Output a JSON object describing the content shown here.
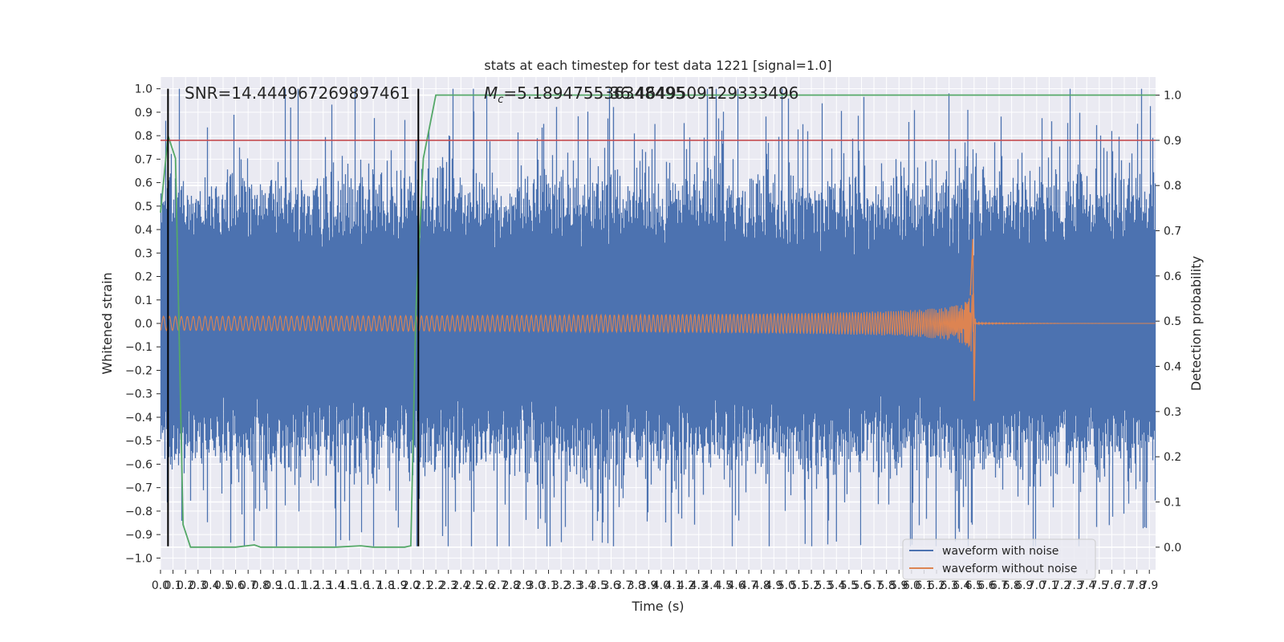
{
  "chart_data": {
    "type": "line",
    "title": "stats at each timestep for test data 1221 [signal=1.0]",
    "xlabel": "Time (s)",
    "ylabel": "Whitened strain",
    "y2label": "Detection probability",
    "xlim": [
      0.0,
      7.95
    ],
    "ylim": [
      -1.05,
      1.05
    ],
    "y2lim": [
      -0.05,
      1.04
    ],
    "x_ticks": [
      "0.0",
      "0.1",
      "0.2",
      "0.3",
      "0.4",
      "0.5",
      "0.6",
      "0.7",
      "0.8",
      "0.9",
      "1.0",
      "1.1",
      "1.2",
      "1.3",
      "1.4",
      "1.5",
      "1.6",
      "1.7",
      "1.8",
      "1.9",
      "2.0",
      "2.1",
      "2.2",
      "2.3",
      "2.4",
      "2.5",
      "2.6",
      "2.7",
      "2.8",
      "2.9",
      "3.0",
      "3.1",
      "3.2",
      "3.3",
      "3.4",
      "3.5",
      "3.6",
      "3.7",
      "3.8",
      "3.9",
      "4.0",
      "4.1",
      "4.2",
      "4.3",
      "4.4",
      "4.5",
      "4.6",
      "4.7",
      "4.8",
      "4.9",
      "5.0",
      "5.1",
      "5.2",
      "5.3",
      "5.4",
      "5.5",
      "5.6",
      "5.7",
      "5.8",
      "5.9",
      "6.0",
      "6.1",
      "6.2",
      "6.3",
      "6.4",
      "6.5",
      "6.6",
      "6.7",
      "6.8",
      "6.9",
      "7.0",
      "7.1",
      "7.2",
      "7.3",
      "7.4",
      "7.5",
      "7.6",
      "7.7",
      "7.8",
      "7.9"
    ],
    "y_ticks": [
      "1.0",
      "0.9",
      "0.8",
      "0.7",
      "0.6",
      "0.5",
      "0.4",
      "0.3",
      "0.2",
      "0.1",
      "0.0",
      "-0.1",
      "-0.2",
      "-0.3",
      "-0.4",
      "-0.5",
      "-0.6",
      "-0.7",
      "-0.8",
      "-0.9",
      "-1.0"
    ],
    "y2_ticks": [
      "1.0",
      "0.9",
      "0.8",
      "0.7",
      "0.6",
      "0.5",
      "0.4",
      "0.3",
      "0.2",
      "0.1",
      "0.0"
    ],
    "annotations": {
      "snr": "SNR=14.444967269897461",
      "mc_prefix": "M",
      "mc_sub": "c",
      "mc_value": "=5.189475536348495",
      "mc_overlap": "36.4649509129333496"
    },
    "series": [
      {
        "name": "waveform with noise",
        "color": "#4c72b0",
        "axis": "left",
        "kind": "noise",
        "amplitude_typical": 0.45,
        "peak_max": 1.0,
        "peak_min": -0.95
      },
      {
        "name": "waveform without noise",
        "color": "#dd8452",
        "axis": "left",
        "kind": "chirp",
        "start_amplitude": 0.03,
        "merger_time": 6.5,
        "merger_peak": 0.36,
        "merger_trough": -0.33
      },
      {
        "name": "detection probability",
        "color": "#55a868",
        "axis": "right",
        "x": [
          0.0,
          0.06,
          0.12,
          0.18,
          0.24,
          0.3,
          0.6,
          0.75,
          0.8,
          1.0,
          1.4,
          1.6,
          1.7,
          1.8,
          1.95,
          2.0,
          2.04,
          2.1,
          2.2,
          7.95
        ],
        "y": [
          0.74,
          0.91,
          0.86,
          0.05,
          0.0,
          0.0,
          0.0,
          0.005,
          0.0,
          0.0,
          0.0,
          0.003,
          0.0,
          0.0,
          0.0,
          0.003,
          0.52,
          0.86,
          1.0,
          1.0
        ]
      }
    ],
    "threshold": {
      "value": 0.9,
      "axis": "right",
      "color": "#c44e52"
    },
    "vlines": [
      {
        "x": 0.06,
        "y": [
          -0.95,
          1.0
        ]
      },
      {
        "x": 2.06,
        "y": [
          -0.95,
          1.0
        ]
      }
    ],
    "legend": {
      "position": "bottom-right",
      "entries": [
        "waveform with noise",
        "waveform without noise"
      ]
    }
  }
}
